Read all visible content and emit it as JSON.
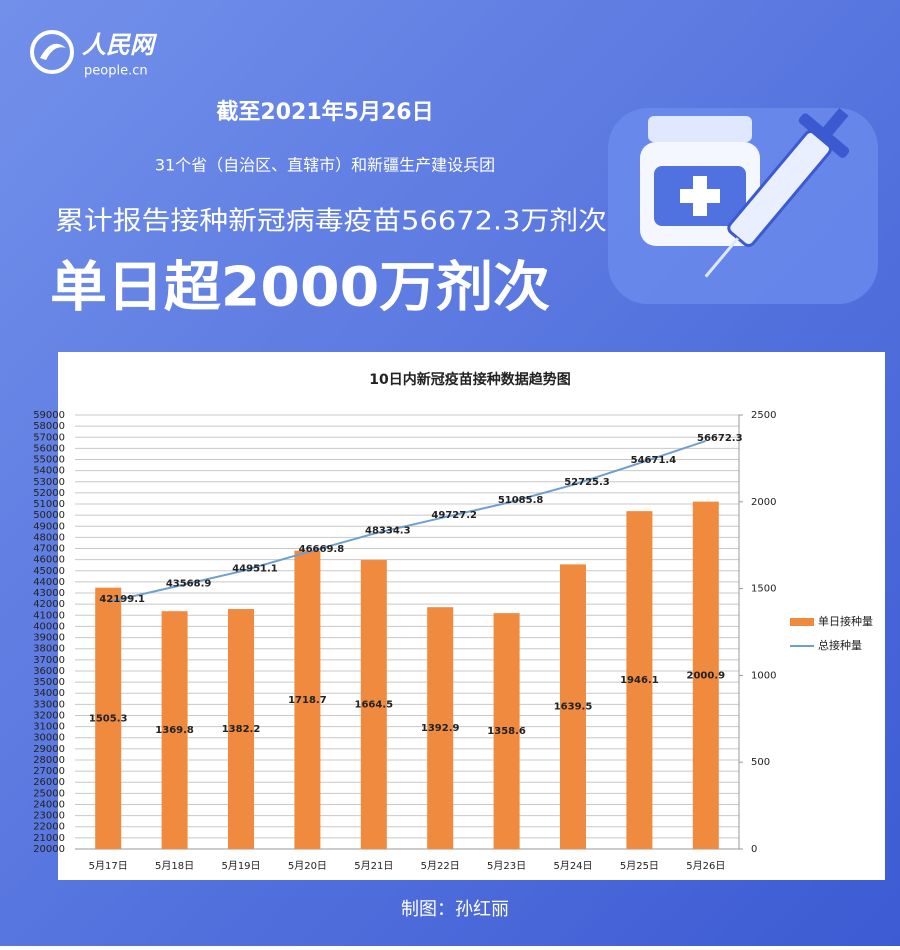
{
  "header": {
    "logo": "人民网",
    "logo_sub": "people.cn",
    "date": "截至2021年5月26日",
    "scope": "31个省（自治区、直辖市）和新疆生产建设兵团",
    "total": "累计报告接种新冠病毒疫苗56672.3万剂次",
    "headline": "单日超2000万剂次"
  },
  "footer": {
    "credit": "制图：孙红丽"
  },
  "chart_data": {
    "type": "bar",
    "title": "10日内新冠疫苗接种数据趋势图",
    "categories": [
      "5月17日",
      "5月18日",
      "5月19日",
      "5月20日",
      "5月21日",
      "5月22日",
      "5月23日",
      "5月24日",
      "5月25日",
      "5月26日"
    ],
    "series": [
      {
        "name": "单日接种量",
        "type": "bar",
        "axis": "y2",
        "color": "#ef8a3f",
        "values": [
          1505.3,
          1369.8,
          1382.2,
          1718.7,
          1664.5,
          1392.9,
          1358.6,
          1639.5,
          1946.1,
          2000.9
        ]
      },
      {
        "name": "总接种量",
        "type": "line",
        "color": "#6d9fcf",
        "values": [
          42199.1,
          43568.9,
          44951.1,
          46669.8,
          48334.3,
          49727.2,
          51085.8,
          52725.3,
          54671.4,
          56672.3
        ]
      }
    ],
    "ylim": [
      20000,
      59000
    ],
    "yticks": [
      20000,
      21000,
      22000,
      23000,
      24000,
      25000,
      26000,
      27000,
      28000,
      29000,
      30000,
      31000,
      32000,
      33000,
      34000,
      35000,
      36000,
      37000,
      38000,
      39000,
      40000,
      41000,
      42000,
      43000,
      44000,
      45000,
      46000,
      47000,
      48000,
      49000,
      50000,
      51000,
      52000,
      53000,
      54000,
      55000,
      56000,
      57000,
      58000,
      59000
    ],
    "y2lim": [
      0,
      2500
    ],
    "y2ticks": [
      0,
      500,
      1000,
      1500,
      2000,
      2500
    ],
    "grid": true,
    "legend": "right"
  }
}
